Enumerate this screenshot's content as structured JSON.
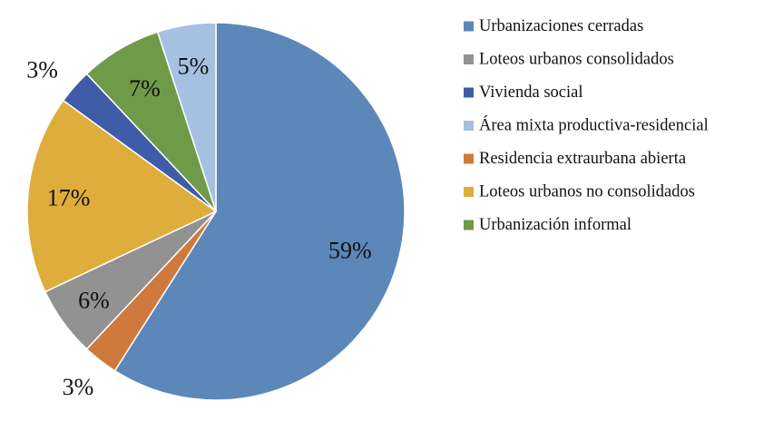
{
  "chart_data": {
    "type": "pie",
    "start_angle_deg": 0,
    "direction": "clockwise",
    "legend_position": "right",
    "categories": [
      "Urbanizaciones cerradas",
      "Loteos urbanos consolidados",
      "Vivienda social",
      "Área mixta productiva-residencial",
      "Residencia extraurbana abierta",
      "Loteos urbanos no consolidados",
      "Urbanización informal"
    ],
    "values": [
      59,
      6,
      3,
      5,
      3,
      17,
      7
    ],
    "value_labels": [
      "59%",
      "6%",
      "3%",
      "5%",
      "3%",
      "17%",
      "7%"
    ],
    "colors": [
      "#5b87b9",
      "#929292",
      "#3e5ca8",
      "#a6c0e2",
      "#cf7a3c",
      "#dfad3c",
      "#6f9a48"
    ],
    "slice_order": [
      0,
      4,
      1,
      5,
      2,
      6,
      3
    ]
  }
}
